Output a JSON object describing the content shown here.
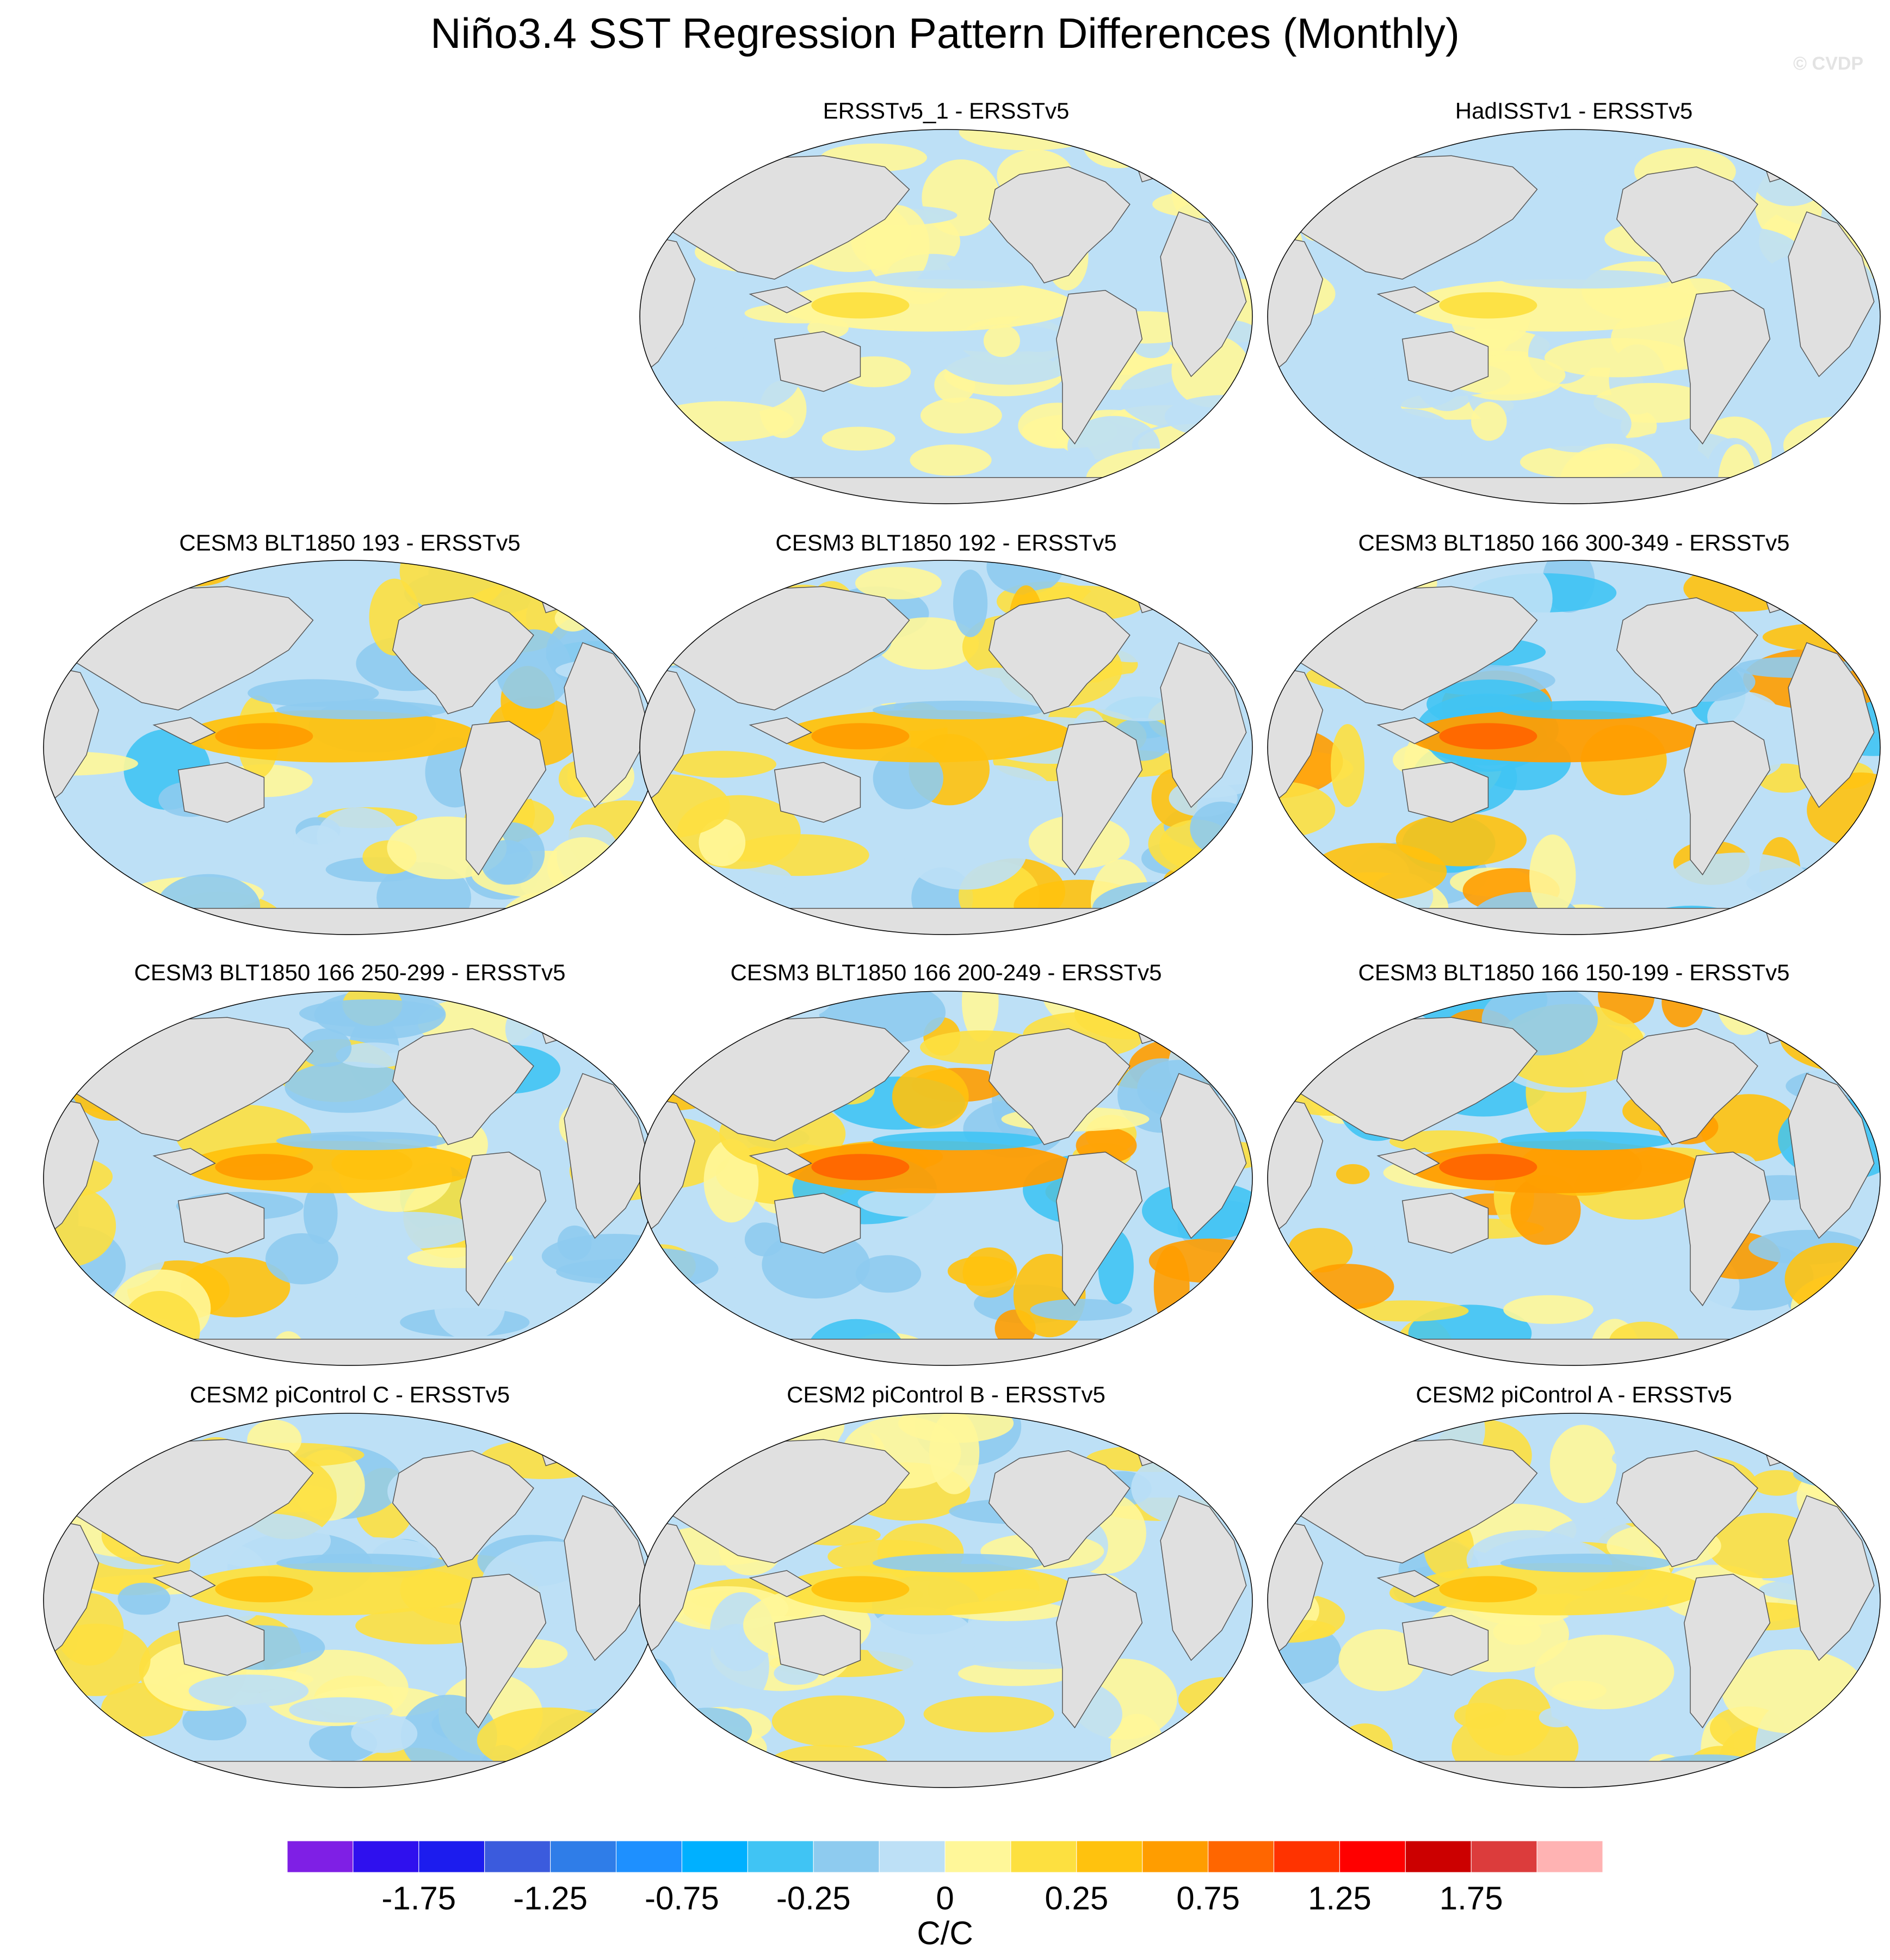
{
  "figure": {
    "title": "Niño3.4 SST Regression Pattern Differences (Monthly)",
    "watermark": "© CVDP"
  },
  "chart_data": {
    "type": "map-panels",
    "projection": "Robinson (global, Pacific-centered)",
    "variable": "Niño3.4 SST regression pattern difference",
    "units": "C/C",
    "panels": [
      {
        "title": "ERSSTv5_1 - ERSSTv5",
        "max_abs": 0.25,
        "character": "weak mixed differences",
        "seed": 11
      },
      {
        "title": "HadISSTv1 - ERSSTv5",
        "max_abs": 0.25,
        "character": "weak mixed differences",
        "seed": 23
      },
      {
        "title": "CESM3 BLT1850 193 - ERSSTv5",
        "max_abs": 0.75,
        "character": "positive tropical Pacific band",
        "seed": 37
      },
      {
        "title": "CESM3 BLT1850 192 - ERSSTv5",
        "max_abs": 0.75,
        "character": "positive equatorial Pacific tongue",
        "seed": 41
      },
      {
        "title": "CESM3 BLT1850 166 300-349 - ERSSTv5",
        "max_abs": 1.0,
        "character": "strong positive western Pacific",
        "seed": 53
      },
      {
        "title": "CESM3 BLT1850 166 250-299 - ERSSTv5",
        "max_abs": 0.75,
        "character": "positive horseshoe pattern",
        "seed": 67
      },
      {
        "title": "CESM3 BLT1850 166 200-249 - ERSSTv5",
        "max_abs": 1.0,
        "character": "strong positive western Pacific",
        "seed": 71
      },
      {
        "title": "CESM3 BLT1850 166 150-199 - ERSSTv5",
        "max_abs": 1.0,
        "character": "strong positive western Pacific",
        "seed": 83
      },
      {
        "title": "CESM2 piControl C - ERSSTv5",
        "max_abs": 0.5,
        "character": "moderate equatorial positive",
        "seed": 97
      },
      {
        "title": "CESM2 piControl B - ERSSTv5",
        "max_abs": 0.5,
        "character": "moderate equatorial positive",
        "seed": 101
      },
      {
        "title": "CESM2 piControl A - ERSSTv5",
        "max_abs": 0.5,
        "character": "moderate equatorial positive",
        "seed": 113
      }
    ],
    "colorbar": {
      "levels": [
        -2.0,
        -1.75,
        -1.5,
        -1.25,
        -1.0,
        -0.75,
        -0.5,
        -0.25,
        0,
        0.25,
        0.5,
        0.75,
        1.0,
        1.25,
        1.5,
        1.75,
        2.0
      ],
      "colors": [
        "#7f1fe5",
        "#2f10ee",
        "#1c1cee",
        "#3b5bdd",
        "#2f7de8",
        "#1e90ff",
        "#00b0ff",
        "#40c4f4",
        "#8ecbef",
        "#bde0f6",
        "#fff799",
        "#fde040",
        "#ffc20e",
        "#ff9d00",
        "#ff6600",
        "#ff3300",
        "#ff0000",
        "#cc0000",
        "#dc3c3c",
        "#ffb3b3"
      ],
      "tick_labels": [
        "-1.75",
        "-1.25",
        "-0.75",
        "-0.25",
        "0",
        "0.25",
        "0.75",
        "1.25",
        "1.75"
      ],
      "label": "C/C"
    }
  }
}
